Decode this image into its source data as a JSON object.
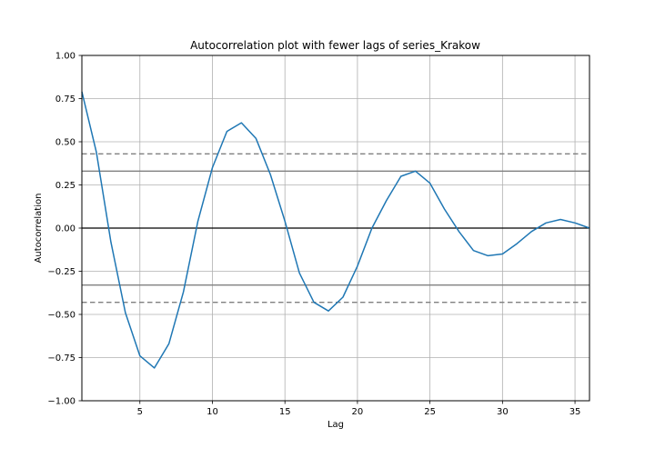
{
  "chart_data": {
    "type": "line",
    "title": "Autocorrelation plot with fewer lags of series_Krakow",
    "xlabel": "Lag",
    "ylabel": "Autocorrelation",
    "xlim": [
      1,
      36
    ],
    "ylim": [
      -1.0,
      1.0
    ],
    "xticks": [
      5,
      10,
      15,
      20,
      25,
      30,
      35
    ],
    "yticks": [
      -1.0,
      -0.75,
      -0.5,
      -0.25,
      0.0,
      0.25,
      0.5,
      0.75,
      1.0
    ],
    "ytick_labels": [
      "−1.00",
      "−0.75",
      "−0.50",
      "−0.25",
      "0.00",
      "0.25",
      "0.50",
      "0.75",
      "1.00"
    ],
    "grid": true,
    "series": [
      {
        "color": "#1f77b4",
        "x": [
          1,
          2,
          3,
          4,
          5,
          6,
          7,
          8,
          9,
          10,
          11,
          12,
          13,
          14,
          15,
          16,
          17,
          18,
          19,
          20,
          21,
          22,
          23,
          24,
          25,
          26,
          27,
          28,
          29,
          30,
          31,
          32,
          33,
          34,
          35,
          36
        ],
        "values": [
          0.79,
          0.44,
          -0.08,
          -0.49,
          -0.74,
          -0.81,
          -0.67,
          -0.37,
          0.04,
          0.35,
          0.56,
          0.61,
          0.52,
          0.31,
          0.04,
          -0.26,
          -0.43,
          -0.48,
          -0.4,
          -0.22,
          0.0,
          0.16,
          0.3,
          0.33,
          0.26,
          0.11,
          -0.02,
          -0.13,
          -0.16,
          -0.15,
          -0.09,
          -0.02,
          0.03,
          0.05,
          0.03,
          0.0
        ]
      }
    ],
    "reference_lines": {
      "zero": {
        "value": 0.0,
        "color": "#000000"
      },
      "confidence_95": {
        "values": [
          0.33,
          -0.33
        ],
        "color": "#808080",
        "style": "solid"
      },
      "confidence_99": {
        "values": [
          0.43,
          -0.43
        ],
        "color": "#808080",
        "style": "dashed"
      }
    }
  }
}
